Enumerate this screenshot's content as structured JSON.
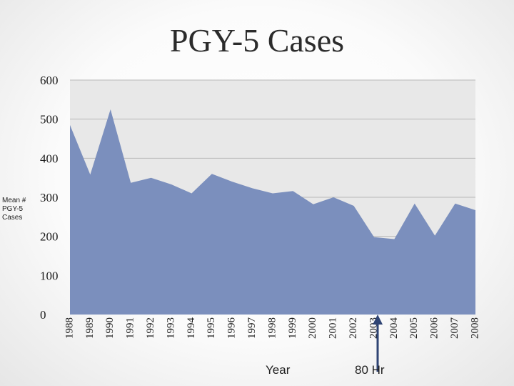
{
  "chart_data": {
    "type": "area",
    "title": "PGY-5 Cases",
    "xlabel": "Year",
    "ylabel": "Mean # PGY-5 Cases",
    "categories": [
      "1988",
      "1989",
      "1990",
      "1991",
      "1992",
      "1993",
      "1994",
      "1995",
      "1996",
      "1997",
      "1998",
      "1999",
      "2000",
      "2001",
      "2002",
      "2003",
      "2004",
      "2005",
      "2006",
      "2007",
      "2008"
    ],
    "series": [
      {
        "values": [
          485,
          358,
          525,
          337,
          350,
          333,
          310,
          360,
          340,
          323,
          310,
          316,
          282,
          300,
          278,
          198,
          193,
          284,
          202,
          284,
          267
        ]
      }
    ],
    "ylim": [
      0,
      600
    ],
    "yticks": [
      "0",
      "100",
      "200",
      "300",
      "400",
      "500",
      "600"
    ],
    "grid": true,
    "fill_color": "#7b8fbd",
    "plot_background": "#e8e8e8",
    "annotation": {
      "text": "80 Hr",
      "category": "2003",
      "marker": "arrow pointing up"
    }
  }
}
